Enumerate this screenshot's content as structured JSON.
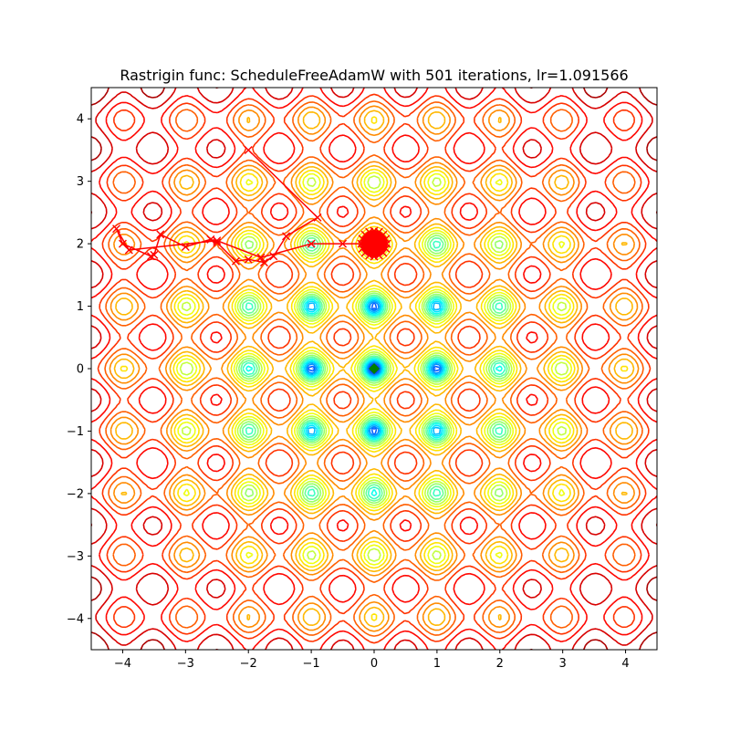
{
  "chart_data": {
    "type": "contour",
    "title": "Rastrigin func: ScheduleFreeAdamW with 501 iterations, lr=1.091566",
    "xlabel": "",
    "ylabel": "",
    "xlim": [
      -4.5,
      4.5
    ],
    "ylim": [
      -4.5,
      4.5
    ],
    "x_ticks": [
      -4,
      -3,
      -2,
      -1,
      0,
      1,
      2,
      3,
      4
    ],
    "y_ticks": [
      -4,
      -3,
      -2,
      -1,
      0,
      1,
      2,
      3,
      4
    ],
    "x_tick_labels": [
      "−4",
      "−3",
      "−2",
      "−1",
      "0",
      "1",
      "2",
      "3",
      "4"
    ],
    "y_tick_labels": [
      "−4",
      "−3",
      "−2",
      "−1",
      "0",
      "1",
      "2",
      "3",
      "4"
    ],
    "grid": false,
    "legend": "none",
    "colormap": "jet",
    "surface": "rastrigin",
    "minimum": {
      "x": 0,
      "y": 0,
      "marker": "diamond",
      "color": "#008000"
    },
    "trajectory": {
      "color": "#ff0000",
      "marker": "x",
      "points": [
        [
          -2.0,
          3.5
        ],
        [
          -0.9,
          2.42
        ],
        [
          -1.4,
          2.12
        ],
        [
          -1.6,
          1.8
        ],
        [
          -1.75,
          1.7
        ],
        [
          -2.0,
          1.75
        ],
        [
          -2.2,
          1.72
        ],
        [
          -2.5,
          2.02
        ],
        [
          -2.6,
          2.07
        ],
        [
          -3.0,
          1.95
        ],
        [
          -3.4,
          2.15
        ],
        [
          -3.5,
          1.82
        ],
        [
          -3.55,
          1.8
        ],
        [
          -4.0,
          2.0
        ],
        [
          -4.1,
          2.24
        ],
        [
          -3.9,
          1.9
        ],
        [
          -2.5,
          2.05
        ],
        [
          -1.8,
          1.78
        ],
        [
          -1.0,
          2.0
        ],
        [
          -0.5,
          2.0
        ],
        [
          0.0,
          2.0
        ]
      ],
      "end_cluster": {
        "x": 0.0,
        "y": 2.0
      }
    }
  }
}
